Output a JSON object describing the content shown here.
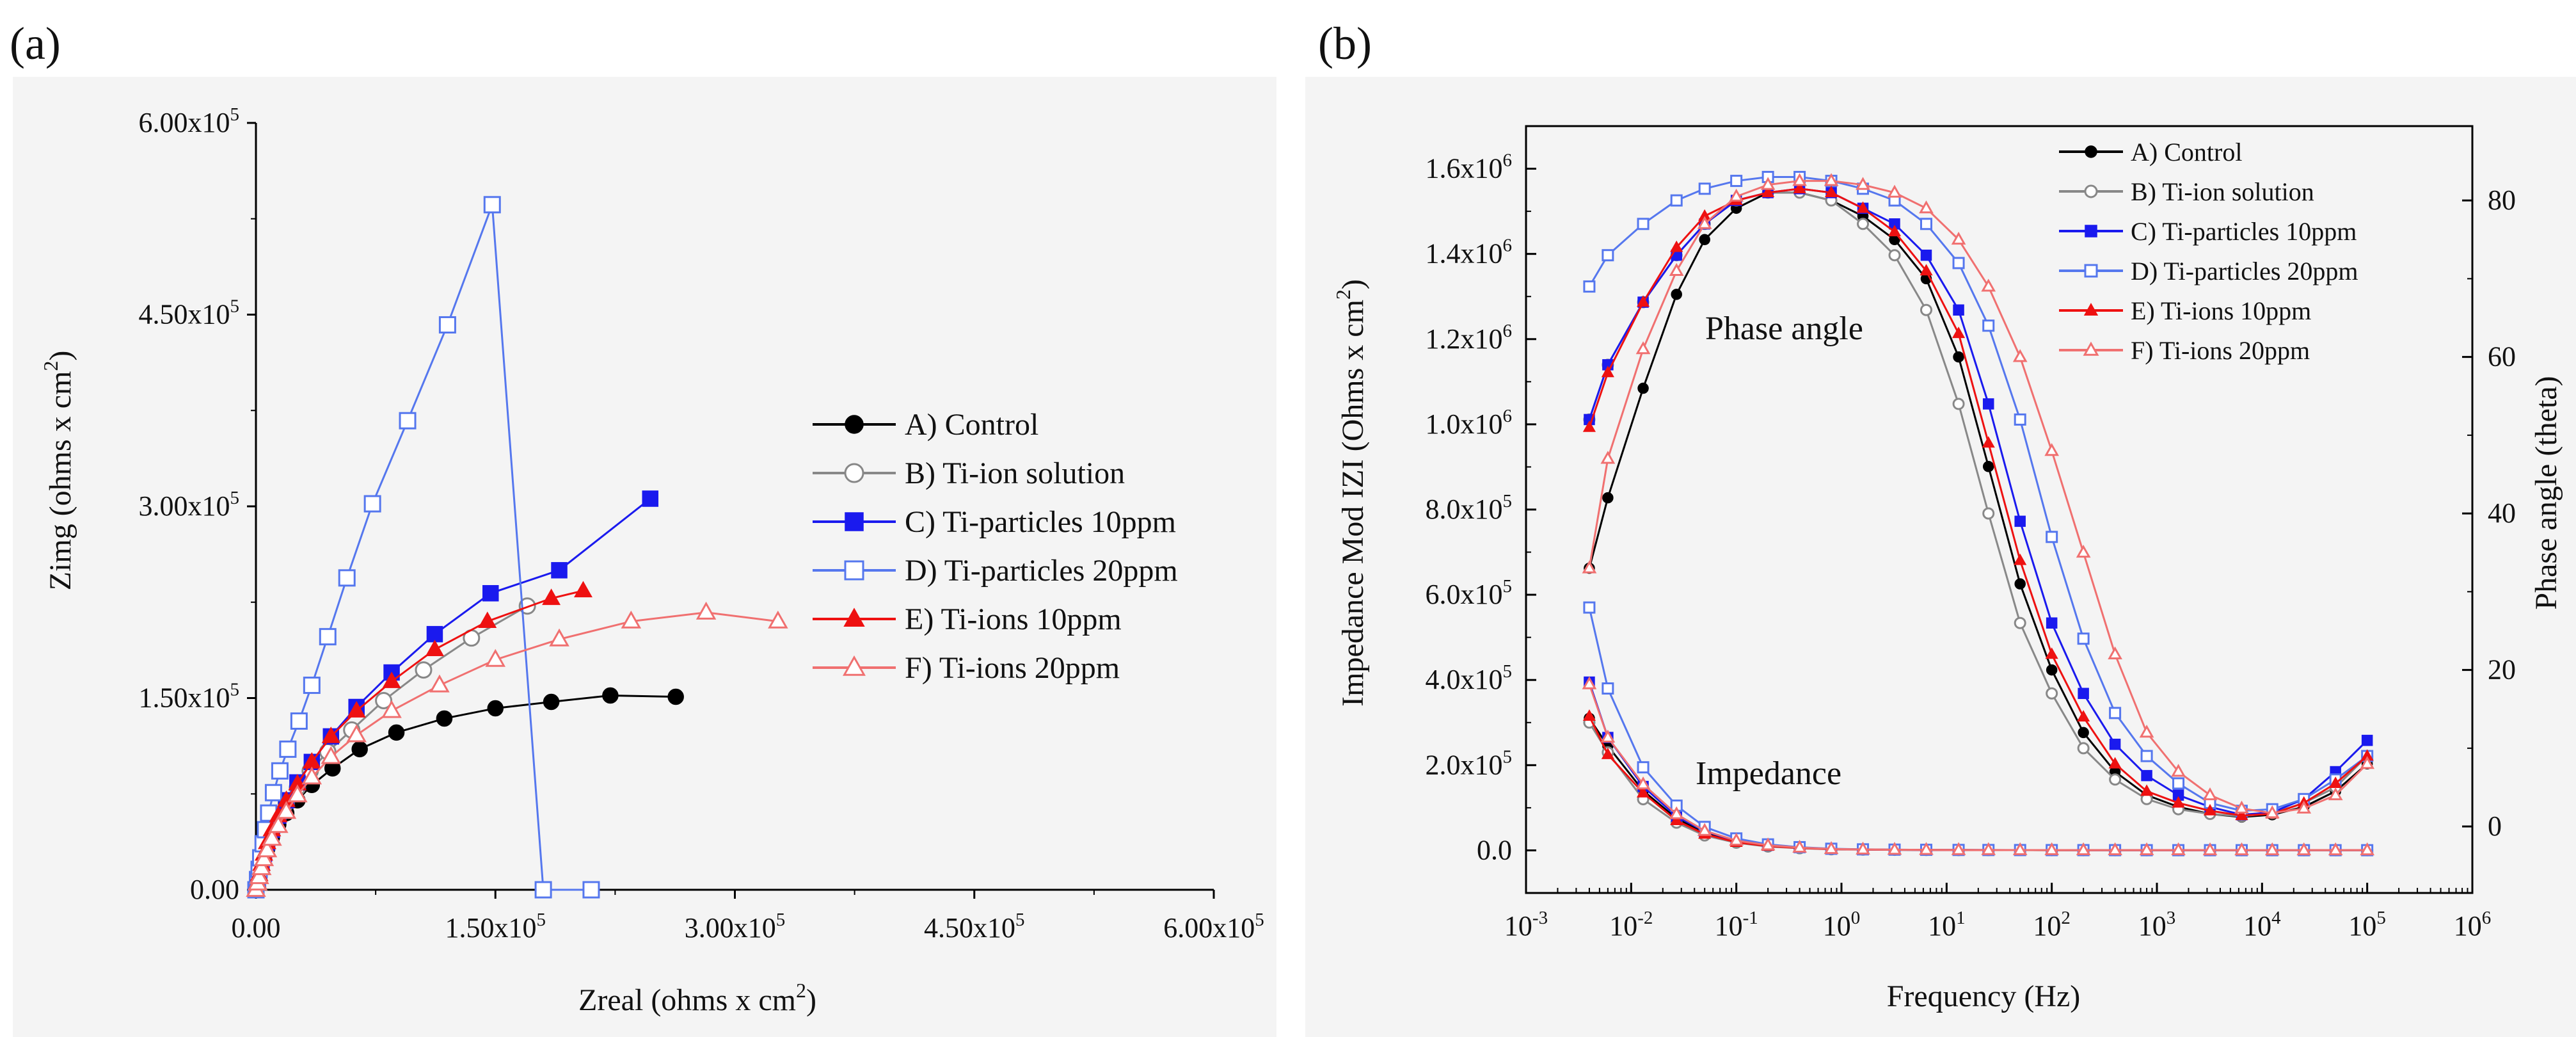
{
  "chart_data": [
    {
      "type": "scatter",
      "panel_label": "(a)",
      "xlabel": "Zreal (ohms x cm",
      "xlabel_sup": "2",
      "xlabel_end": ")",
      "ylabel": "Zimg (ohms x cm",
      "ylabel_sup": "2",
      "ylabel_end": ")",
      "xlim": [
        0,
        600000
      ],
      "ylim": [
        0,
        600000
      ],
      "x_ticks": [
        {
          "value": 0,
          "mant": "0.00",
          "exp": ""
        },
        {
          "value": 150000,
          "mant": "1.50x10",
          "exp": "5"
        },
        {
          "value": 300000,
          "mant": "3.00x10",
          "exp": "5"
        },
        {
          "value": 450000,
          "mant": "4.50x10",
          "exp": "5"
        },
        {
          "value": 600000,
          "mant": "6.00x10",
          "exp": "5"
        }
      ],
      "y_ticks": [
        {
          "value": 0,
          "mant": "0.00",
          "exp": ""
        },
        {
          "value": 150000,
          "mant": "1.50x10",
          "exp": "5"
        },
        {
          "value": 300000,
          "mant": "3.00x10",
          "exp": "5"
        },
        {
          "value": 450000,
          "mant": "4.50x10",
          "exp": "5"
        },
        {
          "value": 600000,
          "mant": "6.00x10",
          "exp": "5"
        }
      ],
      "legend_position": "center-right",
      "series": [
        {
          "name": "A) Control",
          "color": "#000000",
          "marker": "circle",
          "filled": true,
          "x": [
            0,
            1000,
            2000,
            3500,
            5000,
            7000,
            10000,
            14000,
            19000,
            26000,
            35000,
            48000,
            65000,
            88000,
            118000,
            150000,
            185000,
            222000,
            263000
          ],
          "y": [
            0,
            5000,
            10000,
            17000,
            24000,
            32000,
            41000,
            51000,
            60000,
            70000,
            82000,
            95000,
            110000,
            123000,
            134000,
            142000,
            147000,
            152000,
            151000
          ]
        },
        {
          "name": "B) Ti-ion solution",
          "color": "#888888",
          "marker": "circle",
          "filled": false,
          "x": [
            0,
            1000,
            2000,
            3500,
            5000,
            7000,
            10000,
            14000,
            19000,
            26000,
            34000,
            45000,
            60000,
            80000,
            105000,
            135000,
            170000
          ],
          "y": [
            0,
            6000,
            12000,
            20000,
            27000,
            36000,
            46000,
            57000,
            68000,
            80000,
            93000,
            108000,
            125000,
            148000,
            172000,
            197000,
            222000
          ]
        },
        {
          "name": "C) Ti-particles 10ppm",
          "color": "#1a1aee",
          "marker": "square",
          "filled": true,
          "x": [
            0,
            1000,
            2000,
            3500,
            5000,
            7000,
            10000,
            14000,
            19000,
            26000,
            35000,
            47000,
            63000,
            85000,
            112000,
            147000,
            190000,
            247000
          ],
          "y": [
            0,
            6000,
            12000,
            20000,
            28000,
            37000,
            47000,
            58000,
            70000,
            84000,
            100000,
            120000,
            143000,
            170000,
            200000,
            232000,
            250000,
            306000
          ]
        },
        {
          "name": "D) Ti-particles 20ppm",
          "color": "#5577ee",
          "marker": "square",
          "filled": false,
          "x": [
            0,
            1000,
            2000,
            3000,
            4500,
            6000,
            8000,
            11000,
            15000,
            20000,
            27000,
            35000,
            45000,
            57000,
            73000,
            95000,
            120000,
            148000,
            180000,
            210000
          ],
          "y": [
            0,
            8000,
            16000,
            25000,
            36000,
            47000,
            60000,
            76000,
            93000,
            110000,
            132000,
            160000,
            198000,
            244000,
            302000,
            367000,
            442000,
            536000,
            0,
            0
          ]
        },
        {
          "name": "E) Ti-ions 10ppm",
          "color": "#ee1111",
          "marker": "triangle",
          "filled": true,
          "x": [
            0,
            1000,
            2000,
            3500,
            5000,
            7000,
            10000,
            14000,
            19000,
            26000,
            35000,
            47000,
            63000,
            85000,
            112000,
            145000,
            185000,
            205000
          ],
          "y": [
            0,
            6000,
            12000,
            20000,
            28000,
            37000,
            47000,
            58000,
            70000,
            83000,
            100000,
            120000,
            140000,
            163000,
            188000,
            210000,
            228000,
            234000
          ]
        },
        {
          "name": "F) Ti-ions 20ppm",
          "color": "#f07070",
          "marker": "triangle",
          "filled": false,
          "x": [
            0,
            1000,
            2000,
            3500,
            5000,
            7000,
            10000,
            14000,
            19000,
            26000,
            35000,
            47000,
            63000,
            85000,
            115000,
            150000,
            190000,
            235000,
            282000,
            327000
          ],
          "y": [
            0,
            5000,
            10000,
            17000,
            24000,
            31000,
            40000,
            50000,
            61000,
            74000,
            88000,
            104000,
            121000,
            140000,
            160000,
            180000,
            196000,
            210000,
            217000,
            210000
          ]
        }
      ]
    },
    {
      "type": "line",
      "panel_label": "(b)",
      "xlabel": "Frequency (Hz)",
      "ylabel": "Impedance Mod IZI (Ohms x cm",
      "ylabel_sup": "2",
      "ylabel_end": ")",
      "y2label": "Phase angle (theta)",
      "x_scale": "log",
      "xlim": [
        0.001,
        1000000
      ],
      "ylim": [
        -100000,
        1700000
      ],
      "y2lim": [
        -8.5,
        89.5
      ],
      "x_ticks": [
        {
          "value": 0.001,
          "mant": "10",
          "exp": "-3"
        },
        {
          "value": 0.01,
          "mant": "10",
          "exp": "-2"
        },
        {
          "value": 0.1,
          "mant": "10",
          "exp": "-1"
        },
        {
          "value": 1,
          "mant": "10",
          "exp": "0"
        },
        {
          "value": 10,
          "mant": "10",
          "exp": "1"
        },
        {
          "value": 100,
          "mant": "10",
          "exp": "2"
        },
        {
          "value": 1000,
          "mant": "10",
          "exp": "3"
        },
        {
          "value": 10000,
          "mant": "10",
          "exp": "4"
        },
        {
          "value": 100000,
          "mant": "10",
          "exp": "5"
        },
        {
          "value": 1000000,
          "mant": "10",
          "exp": "6"
        }
      ],
      "y_ticks": [
        {
          "value": 0,
          "mant": "0.0",
          "exp": ""
        },
        {
          "value": 200000,
          "mant": "2.0x10",
          "exp": "5"
        },
        {
          "value": 400000,
          "mant": "4.0x10",
          "exp": "5"
        },
        {
          "value": 600000,
          "mant": "6.0x10",
          "exp": "5"
        },
        {
          "value": 800000,
          "mant": "8.0x10",
          "exp": "5"
        },
        {
          "value": 1000000,
          "mant": "1.0x10",
          "exp": "6"
        },
        {
          "value": 1200000,
          "mant": "1.2x10",
          "exp": "6"
        },
        {
          "value": 1400000,
          "mant": "1.4x10",
          "exp": "6"
        },
        {
          "value": 1600000,
          "mant": "1.6x10",
          "exp": "6"
        }
      ],
      "y2_ticks": [
        {
          "value": 0,
          "label": "0"
        },
        {
          "value": 20,
          "label": "20"
        },
        {
          "value": 40,
          "label": "40"
        },
        {
          "value": 60,
          "label": "60"
        },
        {
          "value": 80,
          "label": "80"
        }
      ],
      "annotations": [
        "Phase angle",
        "Impedance"
      ],
      "legend_position": "top-right",
      "x": [
        0.004,
        0.006,
        0.013,
        0.027,
        0.05,
        0.1,
        0.2,
        0.4,
        0.8,
        1.6,
        3.2,
        6.4,
        13,
        25,
        50,
        100,
        200,
        400,
        800,
        1600,
        3200,
        6400,
        12500,
        25000,
        50000,
        100000
      ],
      "series": [
        {
          "name": "A) Control",
          "color": "#000000",
          "marker": "circle",
          "filled": true,
          "phase": [
            33,
            42,
            56,
            68,
            75,
            79,
            81,
            81,
            80,
            78,
            75,
            70,
            60,
            46,
            31,
            20,
            12,
            7,
            4,
            2.5,
            1.6,
            1.2,
            1.5,
            2.5,
            4.5,
            8
          ],
          "impedance": [
            310000,
            245000,
            140000,
            75000,
            40000,
            20000,
            11000,
            6000,
            3000,
            2000,
            1400,
            1000,
            800,
            700,
            600,
            550,
            500,
            450,
            400,
            400,
            400,
            400,
            400,
            400,
            400,
            400
          ]
        },
        {
          "name": "B) Ti-ion solution",
          "color": "#888888",
          "marker": "circle",
          "filled": false,
          "phase": [
            52,
            59,
            67,
            73,
            77,
            80,
            81,
            81,
            80,
            77,
            73,
            66,
            54,
            40,
            26,
            17,
            10,
            6,
            3.5,
            2.2,
            1.6,
            1.3,
            1.7,
            3,
            5,
            9
          ],
          "impedance": [
            300000,
            230000,
            120000,
            65000,
            35000,
            18000,
            9000,
            5000,
            2500,
            1800,
            1300,
            950,
            750,
            650,
            580,
            520,
            470,
            430,
            400,
            400,
            400,
            400,
            400,
            400,
            400,
            400
          ]
        },
        {
          "name": "C) Ti-particles 10ppm",
          "color": "#1a1aee",
          "marker": "square",
          "filled": true,
          "phase": [
            52,
            59,
            67,
            73,
            77,
            80,
            81,
            81.5,
            81,
            79,
            77,
            73,
            66,
            54,
            39,
            26,
            17,
            10.5,
            6.5,
            4,
            2.5,
            1.5,
            1.8,
            3.5,
            7,
            11
          ],
          "impedance": [
            395000,
            265000,
            150000,
            80000,
            45000,
            22000,
            12000,
            6500,
            3200,
            2100,
            1500,
            1100,
            900,
            760,
            660,
            600,
            540,
            480,
            430,
            420,
            410,
            400,
            400,
            400,
            400,
            400
          ]
        },
        {
          "name": "D) Ti-particles 20ppm",
          "color": "#5577ee",
          "marker": "square",
          "filled": false,
          "phase": [
            69,
            73,
            77,
            80,
            81.5,
            82.5,
            83,
            83,
            82.5,
            81.5,
            80,
            77,
            72,
            64,
            52,
            37,
            24,
            14.5,
            9,
            5.5,
            3,
            2,
            2.2,
            3.5,
            6,
            9
          ],
          "impedance": [
            570000,
            380000,
            195000,
            105000,
            55000,
            28000,
            14000,
            7500,
            3800,
            2400,
            1700,
            1300,
            1000,
            850,
            720,
            640,
            570,
            500,
            450,
            430,
            410,
            400,
            400,
            400,
            400,
            400
          ]
        },
        {
          "name": "E) Ti-ions 10ppm",
          "color": "#ee1111",
          "marker": "triangle",
          "filled": true,
          "phase": [
            51,
            58,
            67,
            74,
            78,
            80,
            81,
            81.5,
            81,
            79,
            76,
            71,
            63,
            49,
            34,
            22,
            14,
            8,
            4.5,
            3,
            2,
            1.4,
            1.6,
            3,
            5.5,
            9
          ],
          "impedance": [
            315000,
            225000,
            135000,
            70000,
            38000,
            19000,
            10000,
            5500,
            2800,
            1900,
            1400,
            1000,
            820,
            700,
            610,
            560,
            500,
            450,
            420,
            410,
            400,
            400,
            400,
            400,
            400,
            400
          ]
        },
        {
          "name": "F) Ti-ions 20ppm",
          "color": "#f07070",
          "marker": "triangle",
          "filled": false,
          "phase": [
            33,
            47,
            61,
            71,
            77,
            80.5,
            82,
            82.5,
            82.5,
            82,
            81,
            79,
            75,
            69,
            60,
            48,
            35,
            22,
            12,
            7,
            4,
            2.3,
            1.7,
            2.3,
            4,
            8
          ],
          "impedance": [
            390000,
            265000,
            155000,
            85000,
            46000,
            23000,
            12000,
            6500,
            3300,
            2200,
            1600,
            1200,
            950,
            800,
            700,
            620,
            560,
            500,
            460,
            430,
            410,
            400,
            400,
            400,
            400,
            400
          ]
        }
      ]
    }
  ]
}
